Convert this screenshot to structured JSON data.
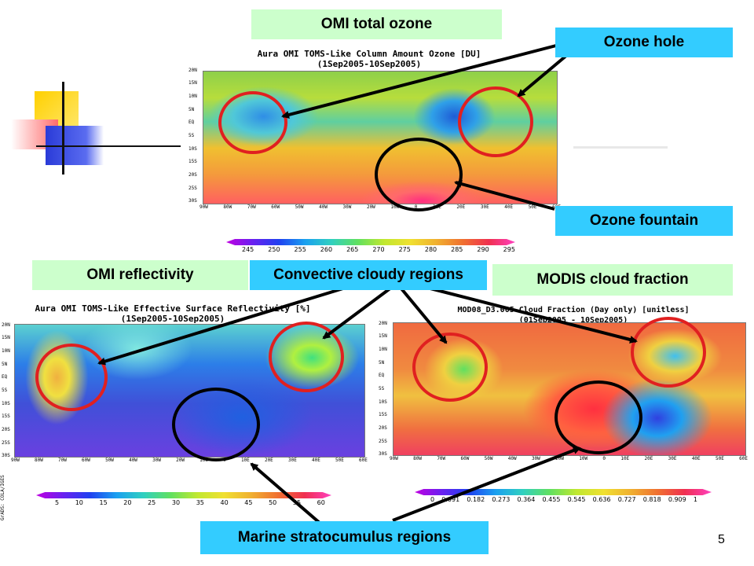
{
  "slide": {
    "page_number": "5"
  },
  "labels": {
    "omi_total_ozone": "OMI total ozone",
    "ozone_hole": "Ozone hole",
    "ozone_fountain": "Ozone fountain",
    "omi_reflectivity": "OMI reflectivity",
    "convective": "Convective cloudy regions",
    "modis_cloud": "MODIS cloud fraction",
    "marine": "Marine stratocumulus regions"
  },
  "maps": {
    "ozone": {
      "title1": "Aura OMI TOMS-Like Column Amount Ozone [DU]",
      "title2": "(1Sep2005-10Sep2005)",
      "colorbar_ticks": [
        "245",
        "250",
        "255",
        "260",
        "265",
        "270",
        "275",
        "280",
        "285",
        "290",
        "295"
      ]
    },
    "reflectivity": {
      "title1": "Aura OMI TOMS-Like Effective Surface Reflectivity [%]",
      "title2": "(1Sep2005-10Sep2005)",
      "colorbar_ticks": [
        "5",
        "10",
        "15",
        "20",
        "25",
        "30",
        "35",
        "40",
        "45",
        "50",
        "55",
        "60"
      ]
    },
    "cloud": {
      "title1": "MOD08_D3.005 Cloud Fraction (Day only) [unitless]",
      "title2": "(01Sep2005 - 10Sep2005)",
      "colorbar_ticks": [
        "0",
        "0.091",
        "0.182",
        "0.273",
        "0.364",
        "0.455",
        "0.545",
        "0.636",
        "0.727",
        "0.818",
        "0.909",
        "1"
      ]
    },
    "lat_ticks": [
      "20N",
      "15N",
      "10N",
      "5N",
      "EQ",
      "5S",
      "10S",
      "15S",
      "20S",
      "25S",
      "30S"
    ],
    "lon_ticks": [
      "90W",
      "80W",
      "70W",
      "60W",
      "50W",
      "40W",
      "30W",
      "20W",
      "10W",
      "0",
      "10E",
      "20E",
      "30E",
      "40E",
      "50E",
      "60E"
    ]
  },
  "credit": "GrADS: COLA/IGES",
  "colors": {
    "green_label": "#ccffcc",
    "cyan_label": "#33ccff",
    "red_circle": "#e02020",
    "black_circle": "#000000"
  }
}
